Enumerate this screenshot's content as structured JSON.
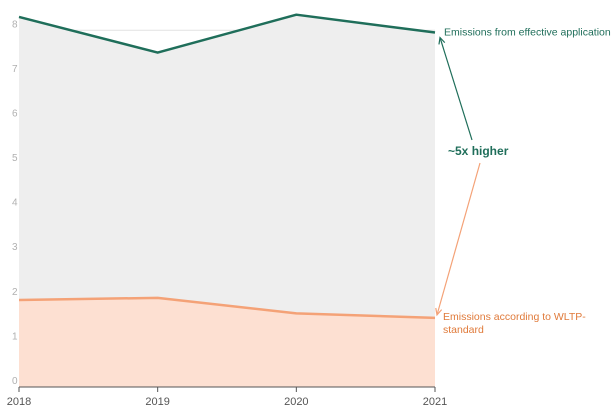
{
  "chart_data": {
    "type": "area",
    "x": [
      "2018",
      "2019",
      "2020",
      "2021"
    ],
    "series": [
      {
        "name": "Emissions from effective application",
        "values": [
          8.3,
          7.5,
          8.35,
          7.95
        ],
        "line_color": "#1f6e5a",
        "fill_color": "#eeeeee"
      },
      {
        "name": "Emissions according to WLTP-standard",
        "values": [
          1.95,
          2.0,
          1.65,
          1.55
        ],
        "line_color": "#f4a277",
        "fill_color": "#fde0d2"
      }
    ],
    "yticks": [
      "0",
      "1",
      "2",
      "3",
      "4",
      "5",
      "6",
      "7",
      "8"
    ],
    "ylim": [
      0,
      8.5
    ],
    "grid": true,
    "annotation": "~5x higher",
    "labels": {
      "green_line1": "Emissions from effective application",
      "orange_line1": "Emissions according to WLTP-",
      "orange_line2": "standard"
    },
    "colors": {
      "green": "#1f6e5a",
      "orange": "#f4a277",
      "orange_text": "#e07a3a",
      "gray_fill": "#eeeeee",
      "orange_fill": "#fde0d2",
      "grid": "#e2e2e2"
    }
  }
}
